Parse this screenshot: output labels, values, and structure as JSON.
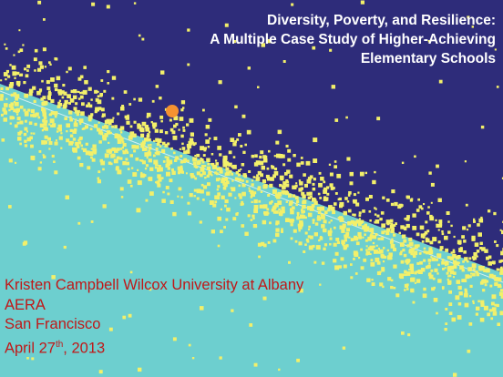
{
  "slide": {
    "title_lines": [
      "Diversity, Poverty, and Resilience:",
      "A Multiple Case Study of Higher-Achieving",
      "Elementary Schools"
    ],
    "author_line": "Kristen Campbell Wilcox University at Albany",
    "conference": "AERA",
    "location": "San Francisco",
    "date_prefix": "April 27",
    "date_sup": "th",
    "date_suffix": ", 2013"
  },
  "colors": {
    "background_top": "#2e2c7a",
    "background_bottom": "#6dcfcf",
    "dots": "#f3f06a",
    "highlight_dot": "#f59230",
    "text_title": "#ffffff",
    "text_info": "#c01818"
  }
}
